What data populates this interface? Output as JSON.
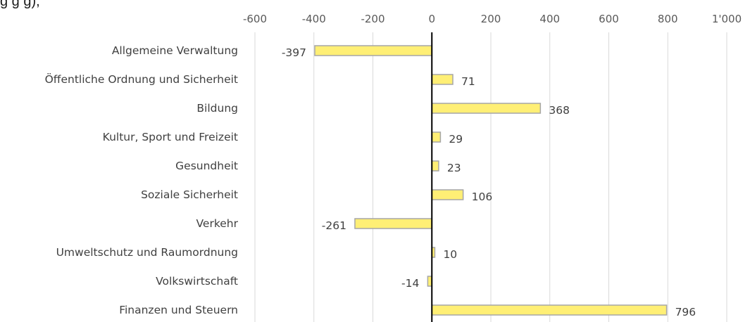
{
  "title_fragment": "g                                                    g                 g),",
  "chart_data": {
    "type": "bar",
    "orientation": "horizontal",
    "categories": [
      "Allgemeine Verwaltung",
      "Öffentliche Ordnung und Sicherheit",
      "Bildung",
      "Kultur, Sport und Freizeit",
      "Gesundheit",
      "Soziale Sicherheit",
      "Verkehr",
      "Umweltschutz und Raumordnung",
      "Volkswirtschaft",
      "Finanzen und Steuern"
    ],
    "values": [
      -397,
      71,
      368,
      29,
      23,
      106,
      -261,
      10,
      -14,
      796
    ],
    "value_labels": [
      "-397",
      "71",
      "368",
      "29",
      "23",
      "106",
      "-261",
      "10",
      "-14",
      "796"
    ],
    "xlim": [
      -600,
      1000
    ],
    "x_ticks": [
      -600,
      -400,
      -200,
      0,
      200,
      400,
      600,
      800,
      1000
    ],
    "x_tick_labels": [
      "-600",
      "-400",
      "-200",
      "0",
      "200",
      "400",
      "600",
      "800",
      "1'000"
    ],
    "x_axis_position": "top",
    "grid": true,
    "bar_color": "#ffef75",
    "bar_edge_color": "#a6a6a6",
    "zero_line_color": "#000000",
    "grid_color": "#d9d9d9"
  }
}
